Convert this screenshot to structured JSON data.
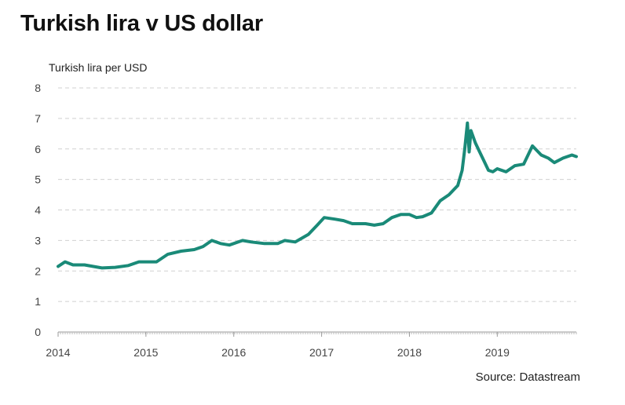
{
  "chart_data": {
    "type": "line",
    "title": "Turkish lira v US dollar",
    "ylabel": "Turkish lira per USD",
    "xlabel": "",
    "source": "Source: Datastream",
    "ylim": [
      0,
      8
    ],
    "xlim": [
      2014.0,
      2019.9
    ],
    "y_ticks": [
      "0",
      "1",
      "2",
      "3",
      "4",
      "5",
      "6",
      "7",
      "8"
    ],
    "x_ticks": [
      "2014",
      "2015",
      "2016",
      "2017",
      "2018",
      "2019"
    ],
    "grid": "horizontal dashed",
    "colors": {
      "line": "#1a8a78",
      "grid": "#d0d0d0",
      "axis": "#9a9a9a"
    },
    "series": [
      {
        "x": [
          2014.0,
          2014.08,
          2014.17,
          2014.3,
          2014.5,
          2014.65,
          2014.8,
          2014.92,
          2015.0,
          2015.12,
          2015.25,
          2015.4,
          2015.55,
          2015.65,
          2015.75,
          2015.85,
          2015.95,
          2016.1,
          2016.2,
          2016.35,
          2016.5,
          2016.58,
          2016.7,
          2016.85,
          2016.95,
          2017.03,
          2017.15,
          2017.25,
          2017.35,
          2017.5,
          2017.6,
          2017.7,
          2017.8,
          2017.9,
          2018.0,
          2018.08,
          2018.15,
          2018.25,
          2018.35,
          2018.45,
          2018.55,
          2018.6,
          2018.63,
          2018.66,
          2018.68,
          2018.7,
          2018.75,
          2018.8,
          2018.85,
          2018.9,
          2018.95,
          2019.0,
          2019.1,
          2019.2,
          2019.3,
          2019.4,
          2019.5,
          2019.58,
          2019.65,
          2019.75,
          2019.85,
          2019.9
        ],
        "values": [
          2.15,
          2.3,
          2.2,
          2.2,
          2.1,
          2.12,
          2.18,
          2.3,
          2.3,
          2.3,
          2.55,
          2.65,
          2.7,
          2.8,
          3.0,
          2.9,
          2.85,
          3.0,
          2.95,
          2.9,
          2.9,
          3.0,
          2.95,
          3.2,
          3.5,
          3.75,
          3.7,
          3.65,
          3.55,
          3.55,
          3.5,
          3.55,
          3.75,
          3.85,
          3.85,
          3.75,
          3.78,
          3.9,
          4.3,
          4.5,
          4.8,
          5.3,
          6.0,
          6.85,
          5.9,
          6.6,
          6.2,
          5.9,
          5.6,
          5.3,
          5.25,
          5.35,
          5.25,
          5.45,
          5.5,
          6.1,
          5.8,
          5.7,
          5.55,
          5.7,
          5.8,
          5.75
        ]
      }
    ]
  }
}
